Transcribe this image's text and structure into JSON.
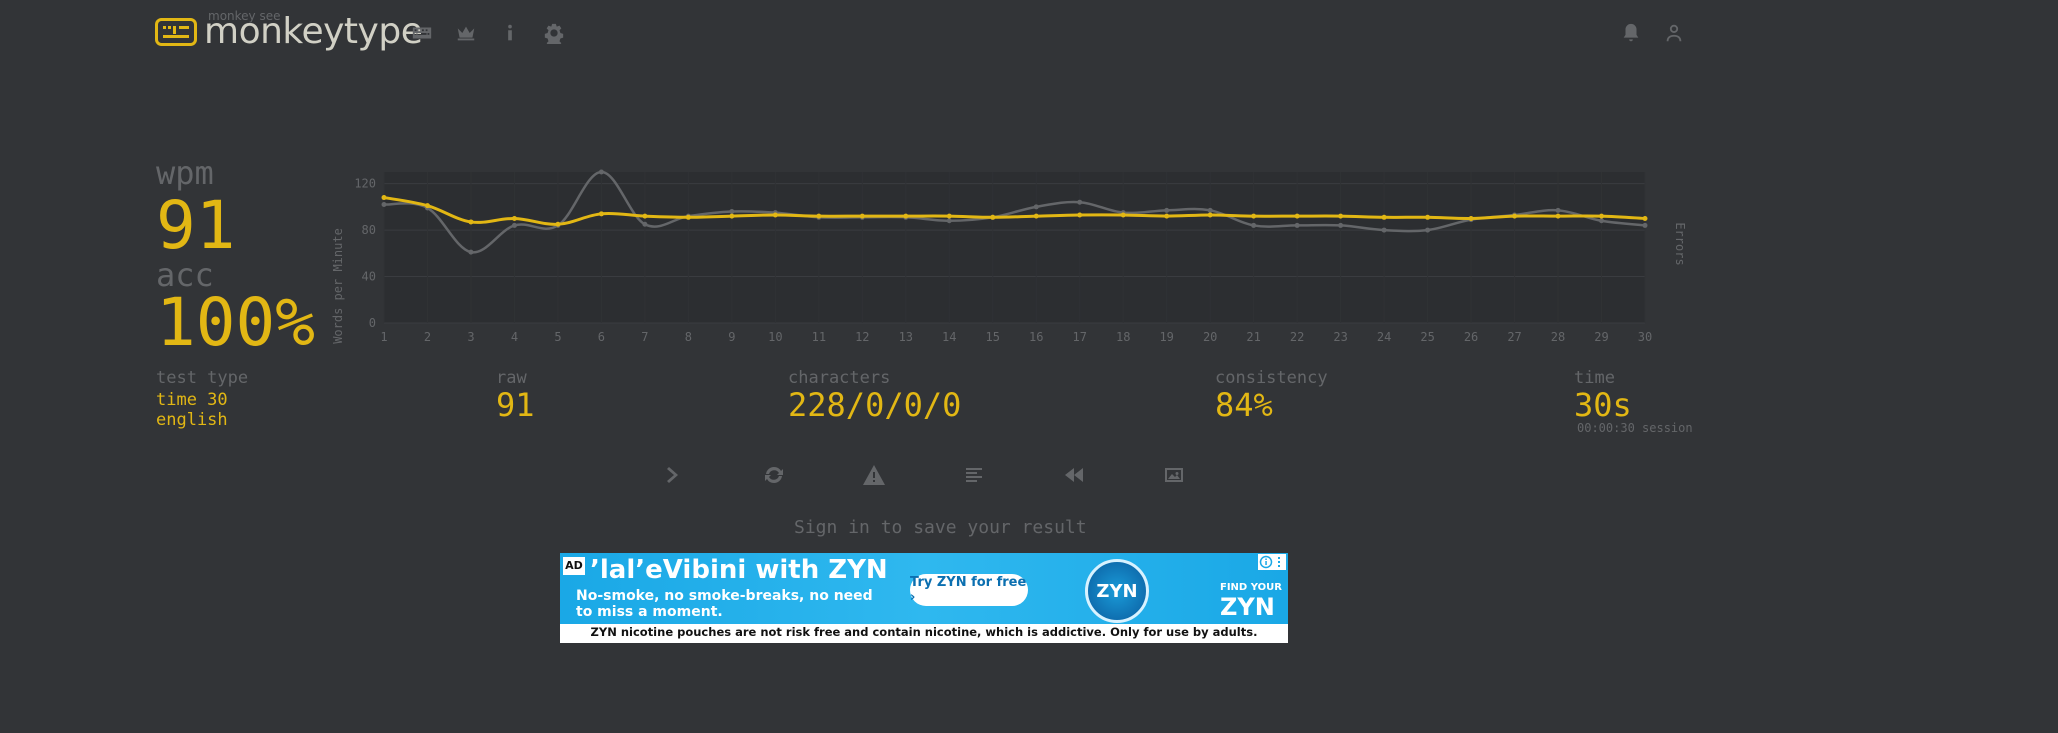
{
  "header": {
    "logo_sub": "monkey see",
    "logo_text": "monkeytype"
  },
  "stats": {
    "wpm_label": "wpm",
    "wpm_value": "91",
    "acc_label": "acc",
    "acc_value": "100%",
    "test_type_label": "test type",
    "test_type_mode": "time 30",
    "test_type_language": "english",
    "raw_label": "raw",
    "raw_value": "91",
    "characters_label": "characters",
    "characters_value": "228/0/0/0",
    "consistency_label": "consistency",
    "consistency_value": "84%",
    "time_label": "time",
    "time_value": "30s",
    "session_text": "00:00:30 session"
  },
  "colors": {
    "background": "#323437",
    "accent": "#e2b714",
    "sub": "#646669",
    "raw_line": "#646669"
  },
  "chart_data": {
    "type": "line",
    "ylabel": "Words per Minute",
    "y2label": "Errors",
    "ylim": [
      0,
      130
    ],
    "yticks": [
      0,
      40,
      80,
      120
    ],
    "x": [
      1,
      2,
      3,
      4,
      5,
      6,
      7,
      8,
      9,
      10,
      11,
      12,
      13,
      14,
      15,
      16,
      17,
      18,
      19,
      20,
      21,
      22,
      23,
      24,
      25,
      26,
      27,
      28,
      29,
      30
    ],
    "series": [
      {
        "name": "wpm",
        "color": "#e2b714",
        "values": [
          108,
          101,
          87,
          90,
          85,
          94,
          92,
          91,
          92,
          93,
          92,
          92,
          92,
          92,
          91,
          92,
          93,
          93,
          92,
          93,
          92,
          92,
          92,
          91,
          91,
          90,
          92,
          92,
          92,
          90
        ]
      },
      {
        "name": "raw",
        "color": "#646669",
        "values": [
          102,
          99,
          61,
          84,
          84,
          130,
          85,
          92,
          96,
          95,
          91,
          91,
          91,
          88,
          91,
          100,
          104,
          95,
          97,
          97,
          84,
          84,
          84,
          80,
          80,
          89,
          93,
          97,
          88,
          84
        ]
      }
    ]
  },
  "actions": [
    {
      "name": "next-test-button",
      "icon": "chevron-right"
    },
    {
      "name": "repeat-test-button",
      "icon": "refresh"
    },
    {
      "name": "practice-words-button",
      "icon": "warning"
    },
    {
      "name": "words-history-button",
      "icon": "align-left"
    },
    {
      "name": "replay-button",
      "icon": "backward"
    },
    {
      "name": "screenshot-button",
      "icon": "image"
    }
  ],
  "signin_text": "Sign in to save your result",
  "ad": {
    "badge": "AD",
    "headline": "’lal’eVibini with ZYN",
    "body": "No-smoke, no smoke-breaks, no need to miss a moment.",
    "cta": "Try ZYN for free ›",
    "can_label": "ZYN",
    "find_text": "FIND YOUR",
    "brand": "ZYN",
    "disclaimer": "ZYN nicotine pouches are not risk free and contain nicotine, which is addictive. Only for use by adults."
  }
}
